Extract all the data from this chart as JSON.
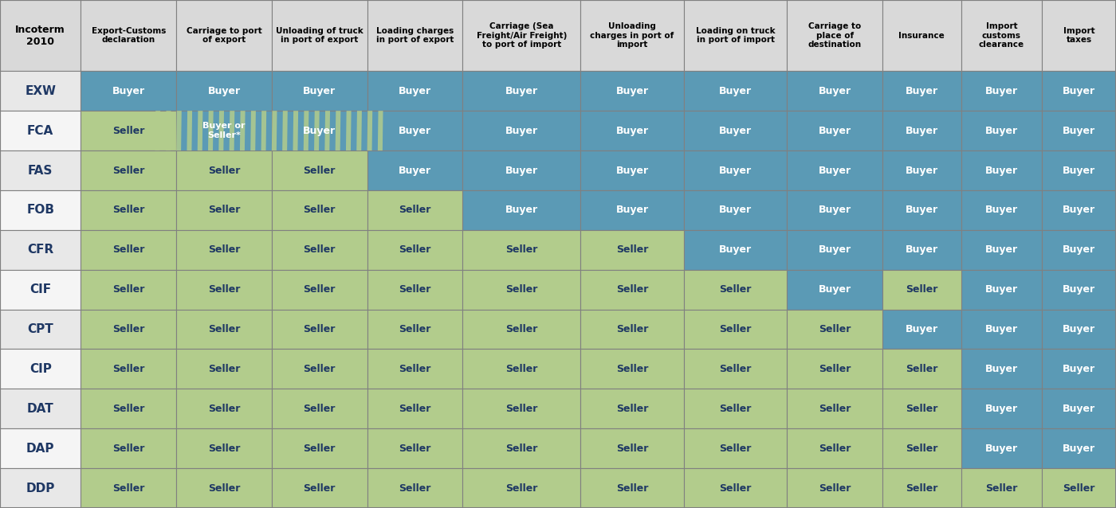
{
  "col_headers": [
    "Incoterm\n2010",
    "Export-Customs\ndeclaration",
    "Carriage to port\nof export",
    "Unloading of truck\nin port of export",
    "Loading charges\nin port of export",
    "Carriage (Sea\nFreight/Air Freight)\nto port of import",
    "Unloading\ncharges in port of\nimport",
    "Loading on truck\nin port of import",
    "Carriage to\nplace of\ndestination",
    "Insurance",
    "Import\ncustoms\nclearance",
    "Import\ntaxes"
  ],
  "rows": [
    "EXW",
    "FCA",
    "FAS",
    "FOB",
    "CFR",
    "CIF",
    "CPT",
    "CIP",
    "DAT",
    "DAP",
    "DDP"
  ],
  "buyer_color": "#5b9ab5",
  "seller_color": "#b2cc8c",
  "mixed_color_bg": "#5b9ab5",
  "mixed_color_stripe": "#b2cc8c",
  "header_bg": "#d9d9d9",
  "header_text_color": "#000000",
  "row_label_bg": "#f0f0f0",
  "row_label_text_color": "#1f3864",
  "buyer_text_color": "#ffffff",
  "seller_text_color": "#1f3864",
  "mixed_text_color": "#ffffff",
  "grid_color": "#808080",
  "cell_data": [
    [
      "Buyer",
      "Buyer",
      "Buyer",
      "Buyer",
      "Buyer",
      "Buyer",
      "Buyer",
      "Buyer",
      "Buyer",
      "Buyer",
      "Buyer"
    ],
    [
      "Seller",
      "Buyer or\nSeller*",
      "Buyer",
      "Buyer",
      "Buyer",
      "Buyer",
      "Buyer",
      "Buyer",
      "Buyer",
      "Buyer",
      "Buyer"
    ],
    [
      "Seller",
      "Seller",
      "Seller",
      "Buyer",
      "Buyer",
      "Buyer",
      "Buyer",
      "Buyer",
      "Buyer",
      "Buyer",
      "Buyer"
    ],
    [
      "Seller",
      "Seller",
      "Seller",
      "Seller",
      "Buyer",
      "Buyer",
      "Buyer",
      "Buyer",
      "Buyer",
      "Buyer",
      "Buyer"
    ],
    [
      "Seller",
      "Seller",
      "Seller",
      "Seller",
      "Seller",
      "Seller",
      "Buyer",
      "Buyer",
      "Buyer",
      "Buyer",
      "Buyer"
    ],
    [
      "Seller",
      "Seller",
      "Seller",
      "Seller",
      "Seller",
      "Seller",
      "Seller",
      "Buyer",
      "Seller",
      "Buyer",
      "Buyer"
    ],
    [
      "Seller",
      "Seller",
      "Seller",
      "Seller",
      "Seller",
      "Seller",
      "Seller",
      "Seller",
      "Buyer",
      "Buyer",
      "Buyer"
    ],
    [
      "Seller",
      "Seller",
      "Seller",
      "Seller",
      "Seller",
      "Seller",
      "Seller",
      "Seller",
      "Seller",
      "Buyer",
      "Buyer"
    ],
    [
      "Seller",
      "Seller",
      "Seller",
      "Seller",
      "Seller",
      "Seller",
      "Seller",
      "Seller",
      "Seller",
      "Buyer",
      "Buyer"
    ],
    [
      "Seller",
      "Seller",
      "Seller",
      "Seller",
      "Seller",
      "Seller",
      "Seller",
      "Seller",
      "Seller",
      "Buyer",
      "Buyer"
    ],
    [
      "Seller",
      "Seller",
      "Seller",
      "Seller",
      "Seller",
      "Seller",
      "Seller",
      "Seller",
      "Seller",
      "Seller",
      "Seller"
    ]
  ],
  "figsize": [
    14.0,
    6.38
  ],
  "dpi": 100
}
